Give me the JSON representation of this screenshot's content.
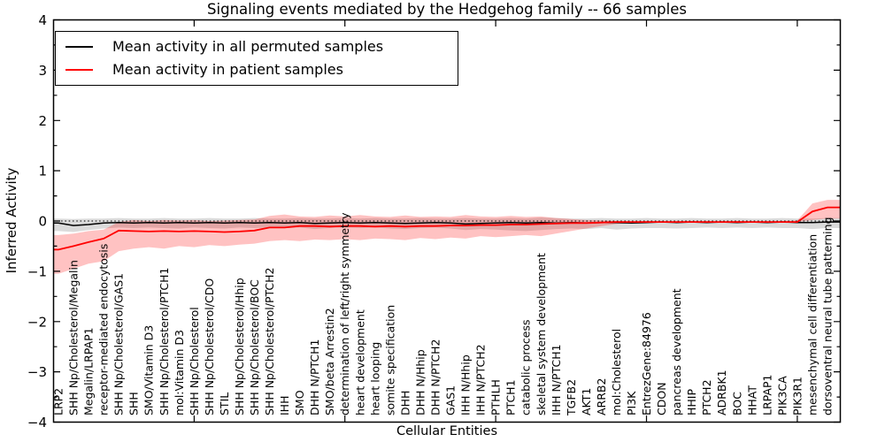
{
  "title": "Signaling events mediated by the Hedgehog family -- 66 samples",
  "axes": {
    "ylabel": "Inferred Activity",
    "xlabel": "Cellular Entities"
  },
  "legend": {
    "entries": [
      {
        "label": "Mean activity in all permuted samples",
        "color": "#000000"
      },
      {
        "label": "Mean activity in patient samples",
        "color": "#ff0000"
      }
    ]
  },
  "colors": {
    "permuted_line": "#000000",
    "patient_line": "#ff0000",
    "permuted_band": "#999999",
    "patient_band": "#ff0000",
    "frame": "#000000"
  },
  "chart_data": {
    "type": "line",
    "title": "Signaling events mediated by the Hedgehog family -- 66 samples",
    "xlabel": "Cellular Entities",
    "ylabel": "Inferred Activity",
    "ylim": [
      -4,
      4
    ],
    "yticks": [
      4,
      3,
      2,
      1,
      0,
      -1,
      -2,
      -3,
      -4
    ],
    "top_tick_indices": [
      9,
      19,
      29,
      39,
      49
    ],
    "zero_line": true,
    "legend_position": "upper left",
    "categories": [
      "LRP2",
      "SHH Np/Cholesterol/Megalin",
      "Megalin/LRPAP1",
      "receptor-mediated endocytosis",
      "SHH Np/Cholesterol/GAS1",
      "SHH",
      "SMO/Vitamin D3",
      "SHH Np/Cholesterol/PTCH1",
      "mol:Vitamin D3",
      "SHH Np/Cholesterol",
      "SHH Np/Cholesterol/CDO",
      "STIL",
      "SHH Np/Cholesterol/Hhip",
      "SHH Np/Cholesterol/BOC",
      "SHH Np/Cholesterol/PTCH2",
      "IHH",
      "SMO",
      "DHH N/PTCH1",
      "SMO/beta Arrestin2",
      "determination of left/right symmetry",
      "heart development",
      "heart looping",
      "somite specification",
      "DHH",
      "DHH N/Hhip",
      "DHH N/PTCH2",
      "GAS1",
      "IHH N/Hhip",
      "IHH N/PTCH2",
      "PTHLH",
      "PTCH1",
      "catabolic process",
      "skeletal system development",
      "IHH N/PTCH1",
      "TGFB2",
      "AKT1",
      "ARRB2",
      "mol:Cholesterol",
      "PI3K",
      "EntrezGene:84976",
      "CDON",
      "pancreas development",
      "HHIP",
      "PTCH2",
      "ADRBK1",
      "BOC",
      "HHAT",
      "LRPAP1",
      "PIK3CA",
      "PIK3R1",
      "mesenchymal cell differentiation",
      "dorsoventral neural tube patterning"
    ],
    "series": [
      {
        "name": "Mean activity in all permuted samples",
        "kind": "line",
        "color": "#000000",
        "width": 1.5,
        "values": [
          -0.04,
          -0.09,
          -0.07,
          -0.04,
          -0.03,
          -0.04,
          -0.03,
          -0.04,
          -0.03,
          -0.04,
          -0.03,
          -0.04,
          -0.03,
          -0.04,
          -0.03,
          -0.04,
          -0.03,
          -0.05,
          -0.04,
          -0.03,
          -0.04,
          -0.03,
          -0.04,
          -0.05,
          -0.04,
          -0.03,
          -0.04,
          -0.06,
          -0.05,
          -0.04,
          -0.03,
          -0.04,
          -0.03,
          -0.04,
          -0.03,
          -0.04,
          -0.03,
          -0.03,
          -0.04,
          -0.03,
          -0.02,
          -0.03,
          -0.02,
          -0.03,
          -0.02,
          -0.03,
          -0.02,
          -0.03,
          -0.02,
          -0.03,
          -0.03,
          -0.02
        ]
      },
      {
        "name": "Mean activity in patient samples",
        "kind": "line",
        "color": "#ff0000",
        "width": 1.8,
        "values": [
          -0.57,
          -0.5,
          -0.42,
          -0.35,
          -0.19,
          -0.2,
          -0.21,
          -0.2,
          -0.21,
          -0.2,
          -0.21,
          -0.22,
          -0.21,
          -0.19,
          -0.13,
          -0.13,
          -0.1,
          -0.1,
          -0.11,
          -0.1,
          -0.1,
          -0.11,
          -0.1,
          -0.11,
          -0.1,
          -0.1,
          -0.09,
          -0.09,
          -0.08,
          -0.08,
          -0.07,
          -0.07,
          -0.06,
          -0.05,
          -0.04,
          -0.04,
          -0.03,
          -0.02,
          -0.02,
          -0.02,
          -0.02,
          -0.02,
          -0.02,
          -0.02,
          -0.02,
          -0.02,
          -0.02,
          -0.02,
          -0.02,
          -0.02,
          0.19,
          0.27
        ]
      },
      {
        "name": "permuted band",
        "kind": "band",
        "color": "#000000",
        "opacity": 0.14,
        "upper": [
          0.05,
          0.04,
          0.05,
          0.05,
          0.06,
          0.05,
          0.05,
          0.06,
          0.05,
          0.05,
          0.06,
          0.05,
          0.05,
          0.06,
          0.05,
          0.05,
          0.06,
          0.05,
          0.05,
          0.06,
          0.05,
          0.06,
          0.05,
          0.05,
          0.06,
          0.05,
          0.05,
          0.06,
          0.05,
          0.05,
          0.06,
          0.05,
          0.07,
          0.06,
          0.05,
          0.05,
          0.06,
          0.05,
          0.05,
          0.06,
          0.05,
          0.05,
          0.06,
          0.05,
          0.05,
          0.06,
          0.05,
          0.05,
          0.06,
          0.05,
          0.05,
          0.06
        ],
        "lower": [
          -0.2,
          -0.22,
          -0.18,
          -0.15,
          -0.13,
          -0.14,
          -0.13,
          -0.14,
          -0.15,
          -0.13,
          -0.14,
          -0.15,
          -0.13,
          -0.14,
          -0.13,
          -0.14,
          -0.13,
          -0.16,
          -0.14,
          -0.13,
          -0.14,
          -0.13,
          -0.15,
          -0.16,
          -0.14,
          -0.13,
          -0.15,
          -0.18,
          -0.16,
          -0.17,
          -0.19,
          -0.2,
          -0.18,
          -0.16,
          -0.15,
          -0.16,
          -0.14,
          -0.17,
          -0.15,
          -0.14,
          -0.14,
          -0.15,
          -0.14,
          -0.13,
          -0.14,
          -0.13,
          -0.14,
          -0.13,
          -0.14,
          -0.14,
          -0.16,
          -0.14
        ]
      },
      {
        "name": "patient band",
        "kind": "band",
        "color": "#ff0000",
        "opacity": 0.24,
        "upper": [
          -0.28,
          -0.25,
          -0.2,
          -0.17,
          -0.02,
          0.02,
          0.0,
          0.02,
          0.01,
          0.02,
          0.0,
          0.01,
          0.02,
          0.03,
          0.1,
          0.13,
          0.09,
          0.08,
          0.11,
          0.09,
          0.12,
          0.09,
          0.08,
          0.11,
          0.08,
          0.09,
          0.08,
          0.12,
          0.09,
          0.08,
          0.1,
          0.08,
          0.09,
          0.06,
          0.04,
          0.02,
          0.01,
          0.0,
          -0.01,
          0.0,
          -0.01,
          -0.01,
          0.0,
          -0.01,
          -0.01,
          0.0,
          -0.01,
          -0.01,
          0.0,
          0.01,
          0.35,
          0.42
        ],
        "lower": [
          -1.05,
          -0.95,
          -0.85,
          -0.8,
          -0.6,
          -0.55,
          -0.52,
          -0.55,
          -0.5,
          -0.52,
          -0.48,
          -0.5,
          -0.47,
          -0.45,
          -0.4,
          -0.38,
          -0.4,
          -0.37,
          -0.38,
          -0.36,
          -0.38,
          -0.35,
          -0.36,
          -0.38,
          -0.34,
          -0.36,
          -0.33,
          -0.35,
          -0.3,
          -0.32,
          -0.3,
          -0.28,
          -0.3,
          -0.25,
          -0.2,
          -0.15,
          -0.1,
          -0.06,
          -0.04,
          -0.03,
          -0.03,
          -0.04,
          -0.03,
          -0.03,
          -0.04,
          -0.03,
          -0.03,
          -0.04,
          -0.03,
          -0.02,
          0.02,
          0.05
        ]
      }
    ]
  }
}
